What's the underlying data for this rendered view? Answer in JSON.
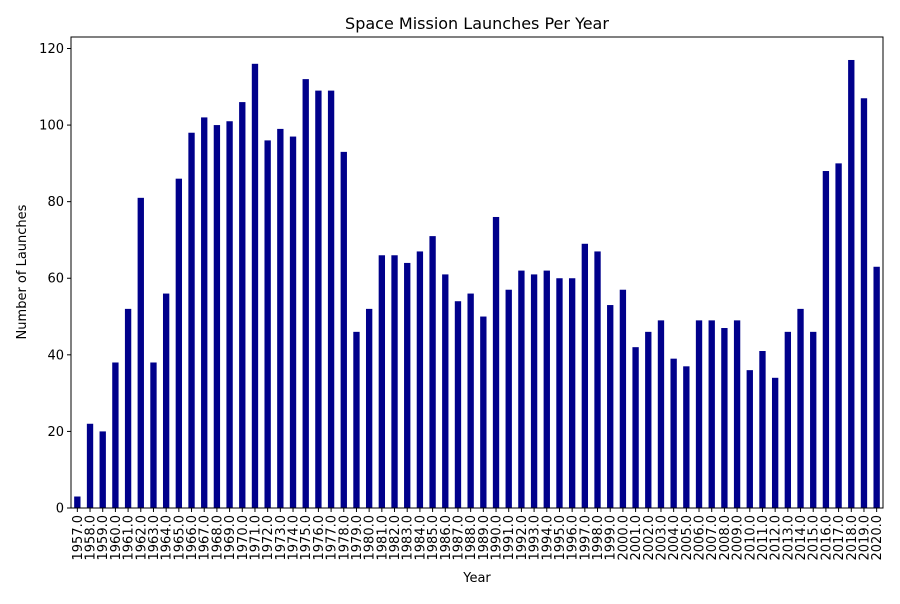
{
  "chart_data": {
    "type": "bar",
    "title": "Space Mission Launches Per Year",
    "xlabel": "Year",
    "ylabel": "Number of Launches",
    "ylim": [
      0,
      123
    ],
    "yticks": [
      "0",
      "20",
      "40",
      "60",
      "80",
      "100",
      "120"
    ],
    "yticks_values": [
      0,
      20,
      40,
      60,
      80,
      100,
      120
    ],
    "grid": false,
    "legend": "none",
    "bar_color": "#00008b",
    "categories": [
      "1957.0",
      "1958.0",
      "1959.0",
      "1960.0",
      "1961.0",
      "1962.0",
      "1963.0",
      "1964.0",
      "1965.0",
      "1966.0",
      "1967.0",
      "1968.0",
      "1969.0",
      "1970.0",
      "1971.0",
      "1972.0",
      "1973.0",
      "1974.0",
      "1975.0",
      "1976.0",
      "1977.0",
      "1978.0",
      "1979.0",
      "1980.0",
      "1981.0",
      "1982.0",
      "1983.0",
      "1984.0",
      "1985.0",
      "1986.0",
      "1987.0",
      "1988.0",
      "1989.0",
      "1990.0",
      "1991.0",
      "1992.0",
      "1993.0",
      "1994.0",
      "1995.0",
      "1996.0",
      "1997.0",
      "1998.0",
      "1999.0",
      "2000.0",
      "2001.0",
      "2002.0",
      "2003.0",
      "2004.0",
      "2005.0",
      "2006.0",
      "2007.0",
      "2008.0",
      "2009.0",
      "2010.0",
      "2011.0",
      "2012.0",
      "2013.0",
      "2014.0",
      "2015.0",
      "2016.0",
      "2017.0",
      "2018.0",
      "2019.0",
      "2020.0"
    ],
    "values": [
      3,
      22,
      20,
      38,
      52,
      81,
      38,
      56,
      86,
      98,
      102,
      100,
      101,
      106,
      116,
      96,
      99,
      97,
      112,
      109,
      109,
      93,
      46,
      52,
      66,
      66,
      64,
      67,
      71,
      61,
      54,
      56,
      50,
      76,
      57,
      62,
      61,
      62,
      60,
      60,
      69,
      67,
      53,
      57,
      42,
      46,
      49,
      39,
      37,
      49,
      49,
      47,
      49,
      36,
      41,
      34,
      46,
      52,
      46,
      88,
      90,
      117,
      107,
      63
    ]
  }
}
